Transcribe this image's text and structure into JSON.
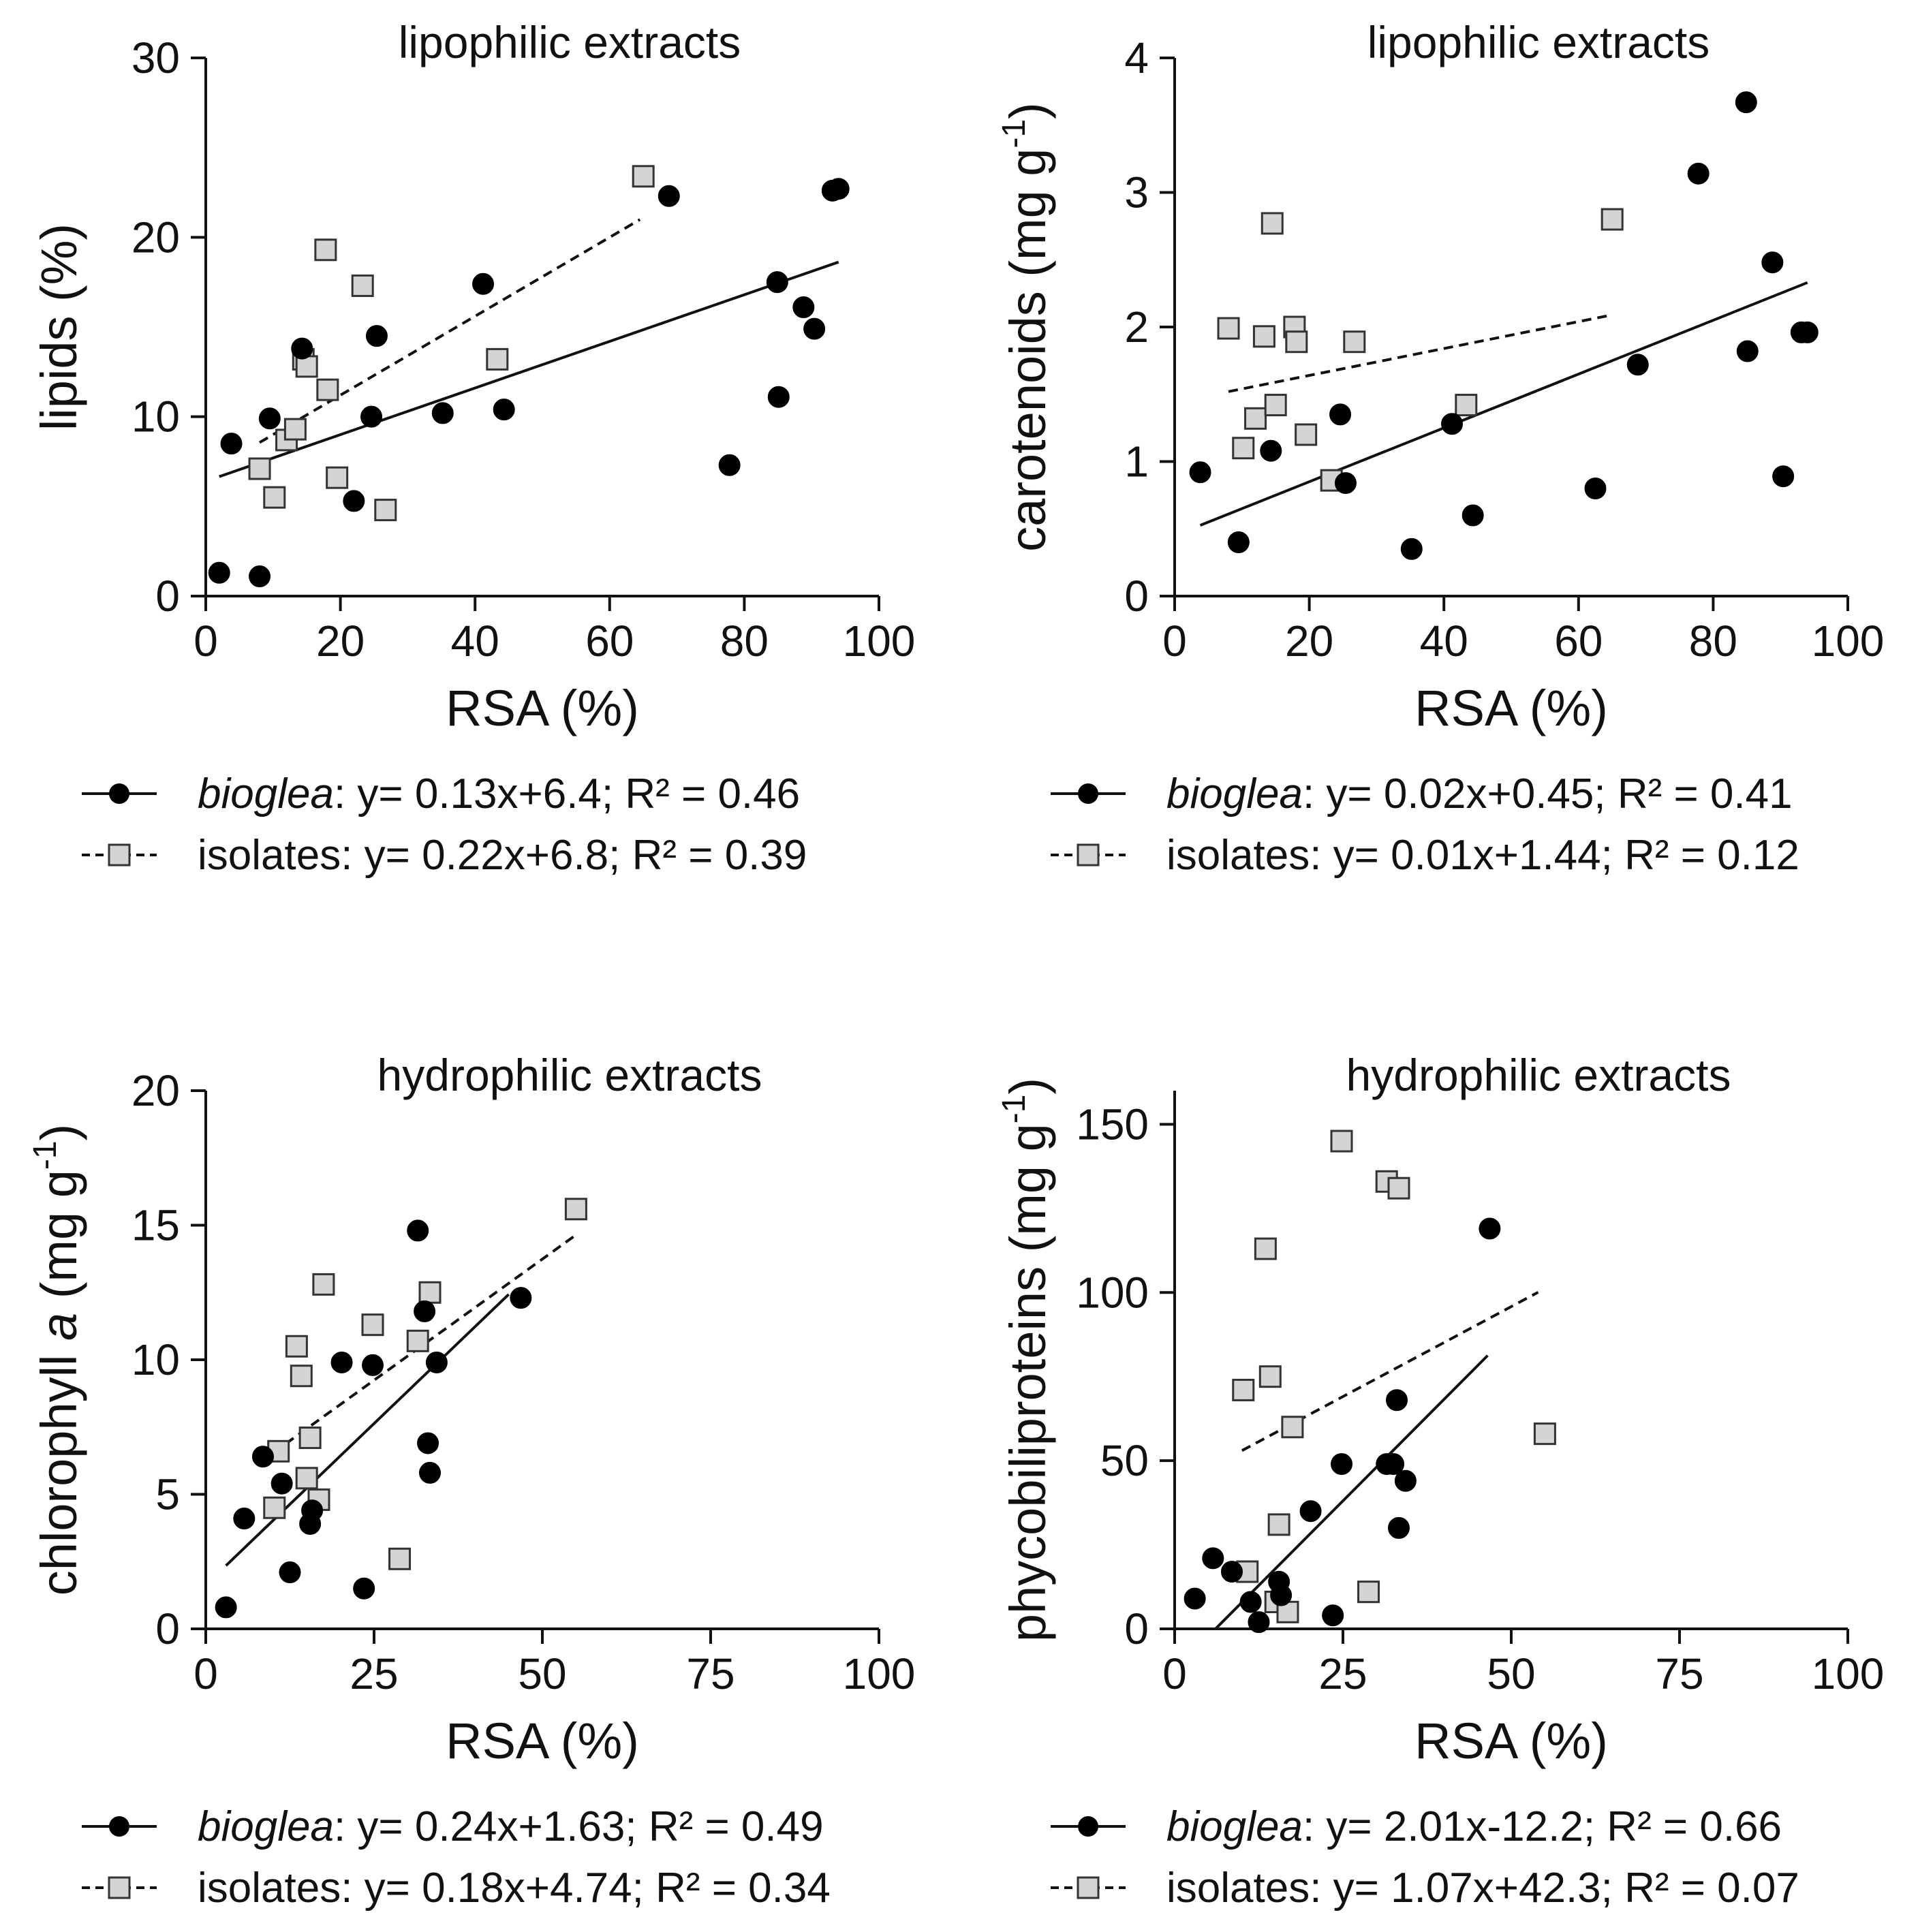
{
  "chart_data": [
    {
      "type": "scatter",
      "title": "lipophilic extracts",
      "xlabel": "RSA (%)",
      "ylabel": {
        "main": "lipids (%)",
        "superscript": "",
        "tail": ""
      },
      "xlim": [
        0,
        100
      ],
      "ylim": [
        0,
        30
      ],
      "xticks": [
        0,
        20,
        40,
        60,
        80,
        100
      ],
      "yticks": [
        0,
        10,
        20,
        30
      ],
      "grid": false,
      "legend_position": "bottom",
      "series": [
        {
          "name": "bioglea",
          "marker": "circle",
          "color": "#000000",
          "line": "solid",
          "label_name": "bioglea",
          "label_eq": ": y= 0.13x+6.4; R² = 0.46",
          "fit": {
            "slope": 0.13,
            "intercept": 6.4,
            "xrange": [
              2,
              94
            ]
          },
          "points": [
            [
              2,
              1.3
            ],
            [
              3.8,
              8.5
            ],
            [
              8,
              1.1
            ],
            [
              9.5,
              9.9
            ],
            [
              14.3,
              13.8
            ],
            [
              22,
              5.3
            ],
            [
              24.6,
              10
            ],
            [
              25.4,
              14.5
            ],
            [
              35.2,
              10.2
            ],
            [
              41.2,
              17.4
            ],
            [
              44.3,
              10.4
            ],
            [
              68.8,
              22.3
            ],
            [
              77.8,
              7.3
            ],
            [
              84.9,
              17.5
            ],
            [
              85.1,
              11.1
            ],
            [
              88.8,
              16.1
            ],
            [
              90.4,
              14.9
            ],
            [
              93.1,
              22.6
            ],
            [
              94,
              22.7
            ]
          ]
        },
        {
          "name": "isolates",
          "marker": "square",
          "color": "#d4d4d4",
          "line": "dashed",
          "label_name": "isolates",
          "label_eq": ": y= 0.22x+6.8; R² = 0.39",
          "fit": {
            "slope": 0.22,
            "intercept": 6.8,
            "xrange": [
              8,
              64.5
            ]
          },
          "points": [
            [
              8,
              7.1
            ],
            [
              10.2,
              5.5
            ],
            [
              12,
              8.7
            ],
            [
              13.3,
              9.3
            ],
            [
              14.5,
              13.2
            ],
            [
              15,
              12.8
            ],
            [
              17.8,
              19.3
            ],
            [
              18.1,
              11.5
            ],
            [
              19.5,
              6.6
            ],
            [
              23.3,
              17.3
            ],
            [
              26.7,
              4.8
            ],
            [
              43.3,
              13.2
            ],
            [
              65,
              23.4
            ]
          ]
        }
      ]
    },
    {
      "type": "scatter",
      "title": "lipophilic extracts",
      "xlabel": "RSA (%)",
      "ylabel": {
        "main": "carotenoids (mg g",
        "superscript": "-1",
        "tail": ")"
      },
      "xlim": [
        0,
        100
      ],
      "ylim": [
        0,
        4
      ],
      "xticks": [
        0,
        20,
        40,
        60,
        80,
        100
      ],
      "yticks": [
        0,
        1,
        2,
        3,
        4
      ],
      "grid": false,
      "legend_position": "bottom",
      "series": [
        {
          "name": "bioglea",
          "marker": "circle",
          "color": "#000000",
          "line": "solid",
          "label_name": "bioglea",
          "label_eq": ": y= 0.02x+0.45; R² = 0.41",
          "fit": {
            "slope": 0.02,
            "intercept": 0.45,
            "xrange": [
              3.8,
              94
            ]
          },
          "points": [
            [
              3.8,
              0.92
            ],
            [
              9.5,
              0.4
            ],
            [
              14.3,
              1.08
            ],
            [
              24.6,
              1.35
            ],
            [
              25.4,
              0.84
            ],
            [
              35.2,
              0.35
            ],
            [
              41.2,
              1.28
            ],
            [
              44.3,
              0.6
            ],
            [
              62.5,
              0.8
            ],
            [
              68.8,
              1.72
            ],
            [
              77.8,
              3.14
            ],
            [
              84.9,
              3.67
            ],
            [
              85.1,
              1.82
            ],
            [
              88.8,
              2.48
            ],
            [
              90.4,
              0.89
            ],
            [
              93.1,
              1.96
            ],
            [
              94,
              1.96
            ]
          ]
        },
        {
          "name": "isolates",
          "marker": "square",
          "color": "#d4d4d4",
          "line": "dashed",
          "label_name": "isolates",
          "label_eq": ": y= 0.01x+1.44; R² = 0.12",
          "fit": {
            "slope": 0.01,
            "intercept": 1.44,
            "xrange": [
              8,
              64.5
            ]
          },
          "points": [
            [
              8,
              1.99
            ],
            [
              10.2,
              1.1
            ],
            [
              12,
              1.32
            ],
            [
              13.3,
              1.93
            ],
            [
              14.5,
              2.77
            ],
            [
              15,
              1.42
            ],
            [
              17.8,
              2.0
            ],
            [
              18.1,
              1.89
            ],
            [
              19.5,
              1.2
            ],
            [
              23.3,
              0.86
            ],
            [
              26.7,
              1.89
            ],
            [
              43.3,
              1.42
            ],
            [
              65,
              2.8
            ]
          ]
        }
      ]
    },
    {
      "type": "scatter",
      "title": "hydrophilic extracts",
      "xlabel": "RSA (%)",
      "ylabel": {
        "main": "chlorophyll ",
        "italic": "a",
        "main2": " (mg g",
        "superscript": "-1",
        "tail": ")"
      },
      "xlim": [
        0,
        100
      ],
      "ylim": [
        0,
        20
      ],
      "xticks": [
        0,
        25,
        50,
        75,
        100
      ],
      "yticks": [
        0,
        5,
        10,
        15,
        20
      ],
      "grid": false,
      "legend_position": "bottom",
      "series": [
        {
          "name": "bioglea",
          "marker": "circle",
          "color": "#000000",
          "line": "solid",
          "label_name": "bioglea",
          "label_eq": ": y= 0.24x+1.63; R² = 0.49",
          "fit": {
            "slope": 0.24,
            "intercept": 1.63,
            "xrange": [
              3,
              45
            ]
          },
          "points": [
            [
              3,
              0.8
            ],
            [
              5.7,
              4.1
            ],
            [
              8.5,
              6.4
            ],
            [
              11.3,
              5.4
            ],
            [
              12.5,
              2.1
            ],
            [
              15.5,
              3.9
            ],
            [
              15.8,
              4.4
            ],
            [
              20.2,
              9.9
            ],
            [
              23.5,
              1.5
            ],
            [
              24.8,
              9.8
            ],
            [
              31.5,
              14.8
            ],
            [
              32.5,
              11.8
            ],
            [
              33,
              6.9
            ],
            [
              33.3,
              5.8
            ],
            [
              34.3,
              9.9
            ],
            [
              46.8,
              12.3
            ]
          ]
        },
        {
          "name": "isolates",
          "marker": "square",
          "color": "#d4d4d4",
          "line": "dashed",
          "label_name": "isolates",
          "label_eq": ": y= 0.18x+4.74; R² = 0.34",
          "fit": {
            "slope": 0.18,
            "intercept": 4.74,
            "xrange": [
              10,
              55
            ]
          },
          "points": [
            [
              10.2,
              4.5
            ],
            [
              10.8,
              6.6
            ],
            [
              13.5,
              10.5
            ],
            [
              14.2,
              9.4
            ],
            [
              15,
              5.6
            ],
            [
              15.5,
              7.1
            ],
            [
              16.8,
              4.8
            ],
            [
              17.5,
              12.8
            ],
            [
              24.8,
              11.3
            ],
            [
              28.8,
              2.6
            ],
            [
              31.5,
              10.7
            ],
            [
              33.3,
              12.5
            ],
            [
              55,
              15.6
            ]
          ]
        }
      ]
    },
    {
      "type": "scatter",
      "title": "hydrophilic extracts",
      "xlabel": "RSA (%)",
      "ylabel": {
        "main": "phycobiliproteins (mg g",
        "superscript": "-1",
        "tail": ")"
      },
      "xlim": [
        0,
        100
      ],
      "ylim": [
        0,
        160
      ],
      "xticks": [
        0,
        25,
        50,
        75,
        100
      ],
      "yticks": [
        0,
        50,
        100,
        150
      ],
      "grid": false,
      "legend_position": "bottom",
      "series": [
        {
          "name": "bioglea",
          "marker": "circle",
          "color": "#000000",
          "line": "solid",
          "label_name": "bioglea",
          "label_eq": ": y= 2.01x-12.2; R² = 0.66",
          "fit": {
            "slope": 2.01,
            "intercept": -12.2,
            "xrange": [
              6.1,
              46.5
            ]
          },
          "points": [
            [
              3,
              9
            ],
            [
              5.7,
              21
            ],
            [
              8.5,
              17
            ],
            [
              11.3,
              8
            ],
            [
              12.5,
              2
            ],
            [
              15.5,
              14
            ],
            [
              15.8,
              10
            ],
            [
              20.2,
              35
            ],
            [
              23.5,
              4
            ],
            [
              24.8,
              49
            ],
            [
              31.5,
              49
            ],
            [
              32.5,
              49
            ],
            [
              33,
              68
            ],
            [
              33.3,
              30
            ],
            [
              34.3,
              44
            ],
            [
              46.8,
              119
            ]
          ]
        },
        {
          "name": "isolates",
          "marker": "square",
          "color": "#d4d4d4",
          "line": "dashed",
          "label_name": "isolates",
          "label_eq": ": y= 1.07x+42.3; R² = 0.07",
          "fit": {
            "slope": 1.07,
            "intercept": 42.3,
            "xrange": [
              10,
              54
            ]
          },
          "points": [
            [
              10.2,
              71
            ],
            [
              10.8,
              17
            ],
            [
              13.5,
              113
            ],
            [
              14.2,
              75
            ],
            [
              15,
              8
            ],
            [
              15.5,
              31
            ],
            [
              16.8,
              5
            ],
            [
              17.5,
              60
            ],
            [
              24.8,
              145
            ],
            [
              28.8,
              11
            ],
            [
              31.5,
              133
            ],
            [
              33.3,
              131
            ],
            [
              55,
              58
            ]
          ]
        }
      ]
    }
  ]
}
